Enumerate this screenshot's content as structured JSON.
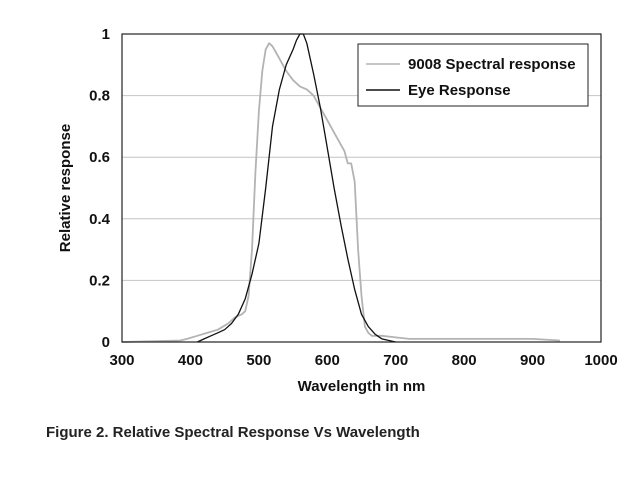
{
  "caption": "Figure 2. Relative Spectral Response Vs Wavelength",
  "chart_data": {
    "type": "line",
    "title": "",
    "xlabel": "Wavelength in nm",
    "ylabel": "Relative response",
    "xlim": [
      300,
      1000
    ],
    "ylim": [
      0,
      1
    ],
    "xticks": [
      "300",
      "400",
      "500",
      "600",
      "700",
      "800",
      "900",
      "1000"
    ],
    "yticks": [
      "0",
      "0.2",
      "0.4",
      "0.6",
      "0.8",
      "1"
    ],
    "grid": "horizontal",
    "legend_position": "top-right",
    "series": [
      {
        "name": "9008 Spectral response",
        "color": "#b3b3b3",
        "x": [
          300,
          385,
          395,
          410,
          425,
          440,
          455,
          465,
          475,
          480,
          485,
          490,
          495,
          500,
          505,
          510,
          515,
          520,
          525,
          530,
          535,
          540,
          550,
          560,
          570,
          580,
          590,
          600,
          610,
          620,
          625,
          630,
          635,
          640,
          645,
          650,
          655,
          660,
          665,
          670,
          680,
          700,
          720,
          760,
          800,
          850,
          900,
          940
        ],
        "y": [
          0,
          0.005,
          0.01,
          0.02,
          0.03,
          0.04,
          0.06,
          0.08,
          0.09,
          0.1,
          0.15,
          0.3,
          0.55,
          0.75,
          0.88,
          0.95,
          0.97,
          0.96,
          0.94,
          0.92,
          0.9,
          0.88,
          0.85,
          0.83,
          0.82,
          0.8,
          0.76,
          0.72,
          0.68,
          0.64,
          0.62,
          0.58,
          0.58,
          0.52,
          0.3,
          0.15,
          0.05,
          0.03,
          0.02,
          0.02,
          0.02,
          0.015,
          0.01,
          0.01,
          0.01,
          0.01,
          0.01,
          0.005
        ]
      },
      {
        "name": "Eye Response",
        "color": "#111111",
        "x": [
          410,
          420,
          430,
          440,
          450,
          460,
          470,
          480,
          490,
          500,
          510,
          520,
          530,
          540,
          550,
          555,
          560,
          565,
          570,
          580,
          590,
          600,
          610,
          620,
          630,
          640,
          650,
          660,
          670,
          680,
          690,
          700
        ],
        "y": [
          0,
          0.01,
          0.02,
          0.03,
          0.04,
          0.06,
          0.09,
          0.14,
          0.22,
          0.32,
          0.5,
          0.7,
          0.82,
          0.9,
          0.95,
          0.98,
          1.0,
          1.0,
          0.97,
          0.87,
          0.76,
          0.63,
          0.5,
          0.38,
          0.27,
          0.17,
          0.09,
          0.05,
          0.025,
          0.01,
          0.005,
          0
        ]
      }
    ]
  }
}
